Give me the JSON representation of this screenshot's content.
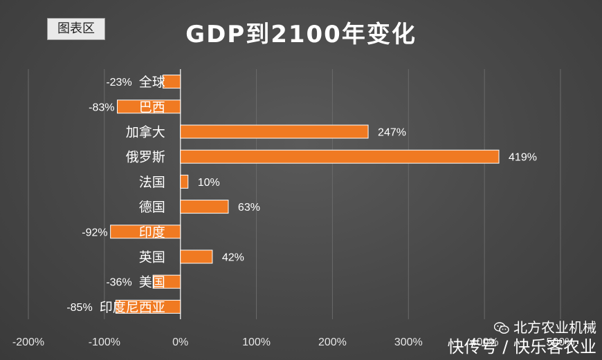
{
  "region_tag": "图表区",
  "chart_data": {
    "type": "bar",
    "orientation": "horizontal",
    "title": "GDP到2100年变化",
    "categories": [
      "全球",
      "巴西",
      "加拿大",
      "俄罗斯",
      "法国",
      "德国",
      "印度",
      "英国",
      "美国",
      "印度尼西亚"
    ],
    "values": [
      -23,
      -83,
      247,
      419,
      10,
      63,
      -92,
      42,
      -36,
      -85
    ],
    "value_labels": [
      "-23%",
      "-83%",
      "247%",
      "419%",
      "10%",
      "63%",
      "-92%",
      "42%",
      "-36%",
      "-85%"
    ],
    "xticks": [
      "-200%",
      "-100%",
      "0%",
      "100%",
      "200%",
      "300%",
      "400%",
      "500%"
    ],
    "xlim": [
      -200,
      500
    ],
    "grid": true,
    "bar_color": "#f07a22",
    "text_color": "#ffffff"
  },
  "watermark": {
    "line1": "北方农业机械",
    "line2": "快传号 / 快乐客农业",
    "icon": "wechat-icon"
  }
}
